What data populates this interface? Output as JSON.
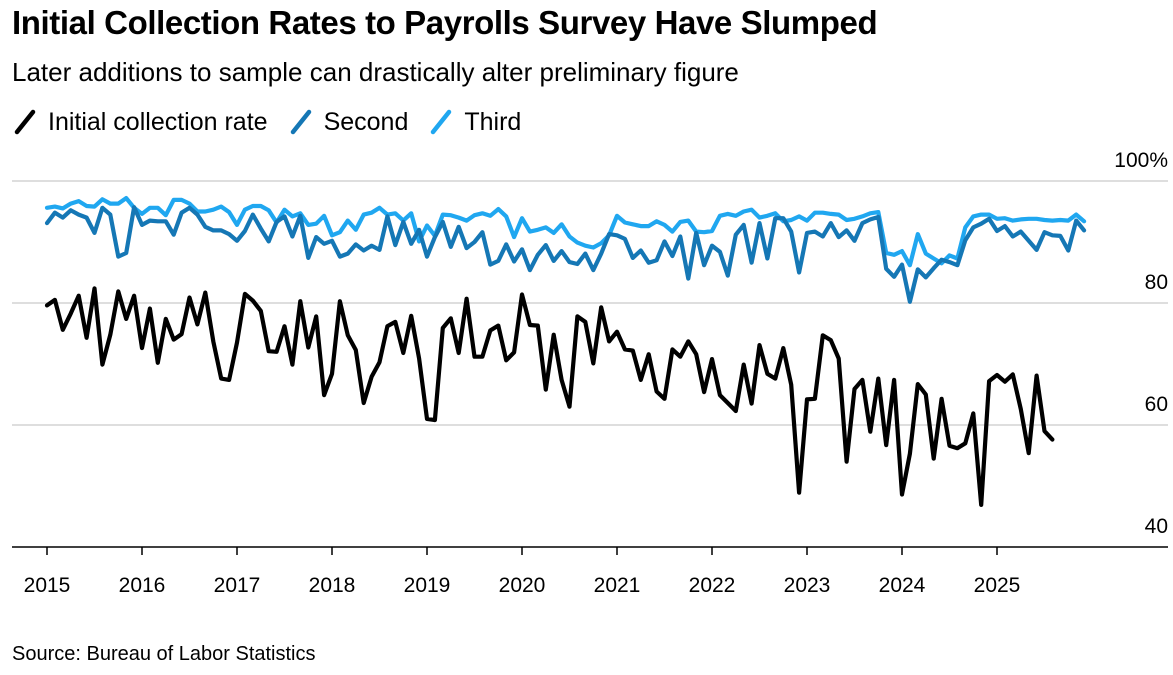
{
  "title": "Initial Collection Rates to Payrolls Survey Have Slumped",
  "subtitle": "Later additions to sample can drastically alter preliminary figure",
  "source": "Source: Bureau of Labor Statistics",
  "colors": {
    "initial": "#000000",
    "second": "#1577b5",
    "third": "#20a7f0",
    "grid": "#d4d4d4",
    "axis": "#000000"
  },
  "chart_data": {
    "type": "line",
    "title": "Initial Collection Rates to Payrolls Survey Have Slumped",
    "subtitle": "Later additions to sample can drastically alter preliminary figure",
    "xlabel": "",
    "ylabel": "",
    "x_start": "2015-01",
    "x_frequency": "monthly",
    "x_ticks": [
      "2015",
      "2016",
      "2017",
      "2018",
      "2019",
      "2020",
      "2021",
      "2022",
      "2023",
      "2024",
      "2025"
    ],
    "y_ticks": [
      "40",
      "60",
      "80",
      "100%"
    ],
    "ylim": [
      40,
      100
    ],
    "grid": true,
    "legend_position": "top-left",
    "series": [
      {
        "name": "Initial collection rate",
        "color": "#000000",
        "values": [
          79.6,
          80.5,
          75.6,
          78.3,
          81.2,
          74.3,
          82.4,
          69.9,
          74.8,
          81.9,
          77.4,
          81.2,
          72.6,
          79.1,
          70.2,
          77.4,
          74.0,
          74.9,
          80.9,
          76.5,
          81.7,
          73.7,
          67.6,
          67.4,
          73.5,
          81.5,
          80.4,
          78.7,
          72.1,
          72.0,
          76.2,
          69.9,
          80.3,
          72.7,
          77.8,
          64.9,
          68.4,
          80.3,
          74.7,
          72.3,
          63.6,
          67.9,
          70.3,
          76.2,
          76.9,
          71.8,
          77.9,
          70.9,
          61.0,
          60.8,
          75.9,
          77.5,
          71.8,
          80.7,
          71.2,
          71.2,
          75.5,
          76.3,
          70.6,
          71.9,
          81.4,
          76.4,
          76.3,
          65.8,
          74.8,
          67.4,
          63.0,
          77.8,
          76.9,
          70.1,
          79.3,
          73.7,
          75.3,
          72.4,
          72.2,
          67.4,
          71.6,
          65.5,
          64.3,
          72.4,
          71.2,
          73.7,
          71.6,
          65.4,
          70.8,
          64.9,
          63.6,
          62.3,
          69.9,
          63.5,
          73.1,
          68.4,
          67.6,
          72.6,
          66.6,
          48.9,
          64.2,
          64.3,
          74.7,
          73.9,
          70.9,
          54.0,
          65.9,
          67.4,
          58.9,
          67.6,
          56.7,
          67.4,
          48.6,
          55.3,
          66.7,
          65.0,
          54.5,
          64.3,
          56.6,
          56.2,
          57.0,
          61.9,
          46.9,
          67.2,
          68.2,
          67.1,
          68.3,
          62.6,
          55.4,
          68.1,
          59.0,
          57.6
        ]
      },
      {
        "name": "Second",
        "color": "#1577b5",
        "values": [
          93.1,
          94.8,
          94.0,
          95.2,
          94.5,
          94.0,
          91.5,
          95.6,
          94.5,
          87.6,
          88.2,
          95.7,
          92.8,
          93.5,
          93.4,
          93.4,
          91.2,
          94.8,
          95.6,
          94.5,
          92.5,
          91.9,
          91.9,
          91.3,
          90.2,
          91.8,
          94.5,
          92.2,
          90.1,
          93.3,
          94.2,
          90.9,
          94.3,
          87.4,
          90.8,
          89.7,
          90.2,
          87.6,
          88.1,
          89.6,
          88.6,
          89.4,
          88.7,
          94.2,
          89.5,
          93.3,
          89.7,
          92.0,
          87.6,
          90.8,
          93.3,
          89.2,
          92.5,
          89.0,
          90.0,
          91.6,
          86.3,
          86.9,
          89.6,
          86.8,
          88.8,
          85.4,
          87.9,
          89.5,
          86.9,
          88.5,
          86.7,
          86.4,
          88.1,
          85.4,
          88.1,
          91.3,
          91.1,
          90.5,
          87.4,
          88.6,
          86.6,
          87.0,
          90.1,
          87.7,
          90.9,
          84.0,
          91.5,
          86.2,
          89.4,
          88.4,
          84.5,
          91.2,
          92.8,
          86.6,
          93.1,
          87.3,
          93.9,
          93.9,
          91.7,
          85.0,
          91.5,
          91.7,
          90.9,
          93.1,
          90.8,
          91.9,
          90.2,
          93.1,
          93.7,
          94.1,
          85.6,
          84.3,
          86.3,
          80.2,
          85.5,
          84.2,
          85.7,
          87.1,
          86.7,
          86.2,
          90.3,
          92.4,
          93.0,
          93.8,
          91.8,
          92.6,
          90.9,
          91.7,
          90.2,
          88.7,
          91.6,
          91.1,
          91.0,
          88.6,
          93.5,
          91.9
        ]
      },
      {
        "name": "Third",
        "color": "#20a7f0",
        "values": [
          95.6,
          95.8,
          95.5,
          96.3,
          96.7,
          95.9,
          95.8,
          97.0,
          96.3,
          96.3,
          97.2,
          95.6,
          94.6,
          95.6,
          95.6,
          94.4,
          96.9,
          96.9,
          96.3,
          95.0,
          95.0,
          95.3,
          95.8,
          94.9,
          92.8,
          95.3,
          95.9,
          95.9,
          95.2,
          93.2,
          95.3,
          94.2,
          94.7,
          92.8,
          93.0,
          94.3,
          91.1,
          91.6,
          93.5,
          92.0,
          94.5,
          94.8,
          95.6,
          94.5,
          94.7,
          93.5,
          94.7,
          90.1,
          92.7,
          91.0,
          94.5,
          94.4,
          94.0,
          93.5,
          94.4,
          94.7,
          94.3,
          95.4,
          94.2,
          90.8,
          93.9,
          91.7,
          92.0,
          92.4,
          91.5,
          92.9,
          90.9,
          89.9,
          89.4,
          89.1,
          89.8,
          91.1,
          94.3,
          93.2,
          92.9,
          92.6,
          92.6,
          93.4,
          92.8,
          91.7,
          93.3,
          93.5,
          91.7,
          91.6,
          91.8,
          94.3,
          94.6,
          94.3,
          95.0,
          95.3,
          94.0,
          94.3,
          94.7,
          93.4,
          93.6,
          94.2,
          93.5,
          94.8,
          94.8,
          94.6,
          94.5,
          93.6,
          93.8,
          94.2,
          94.7,
          94.9,
          88.2,
          87.9,
          88.5,
          86.2,
          91.3,
          88.1,
          87.3,
          86.5,
          87.8,
          87.3,
          92.4,
          94.2,
          94.5,
          94.5,
          93.8,
          93.9,
          93.5,
          93.7,
          93.8,
          93.8,
          93.6,
          93.5,
          93.6,
          93.5,
          94.5,
          93.4
        ]
      }
    ]
  }
}
